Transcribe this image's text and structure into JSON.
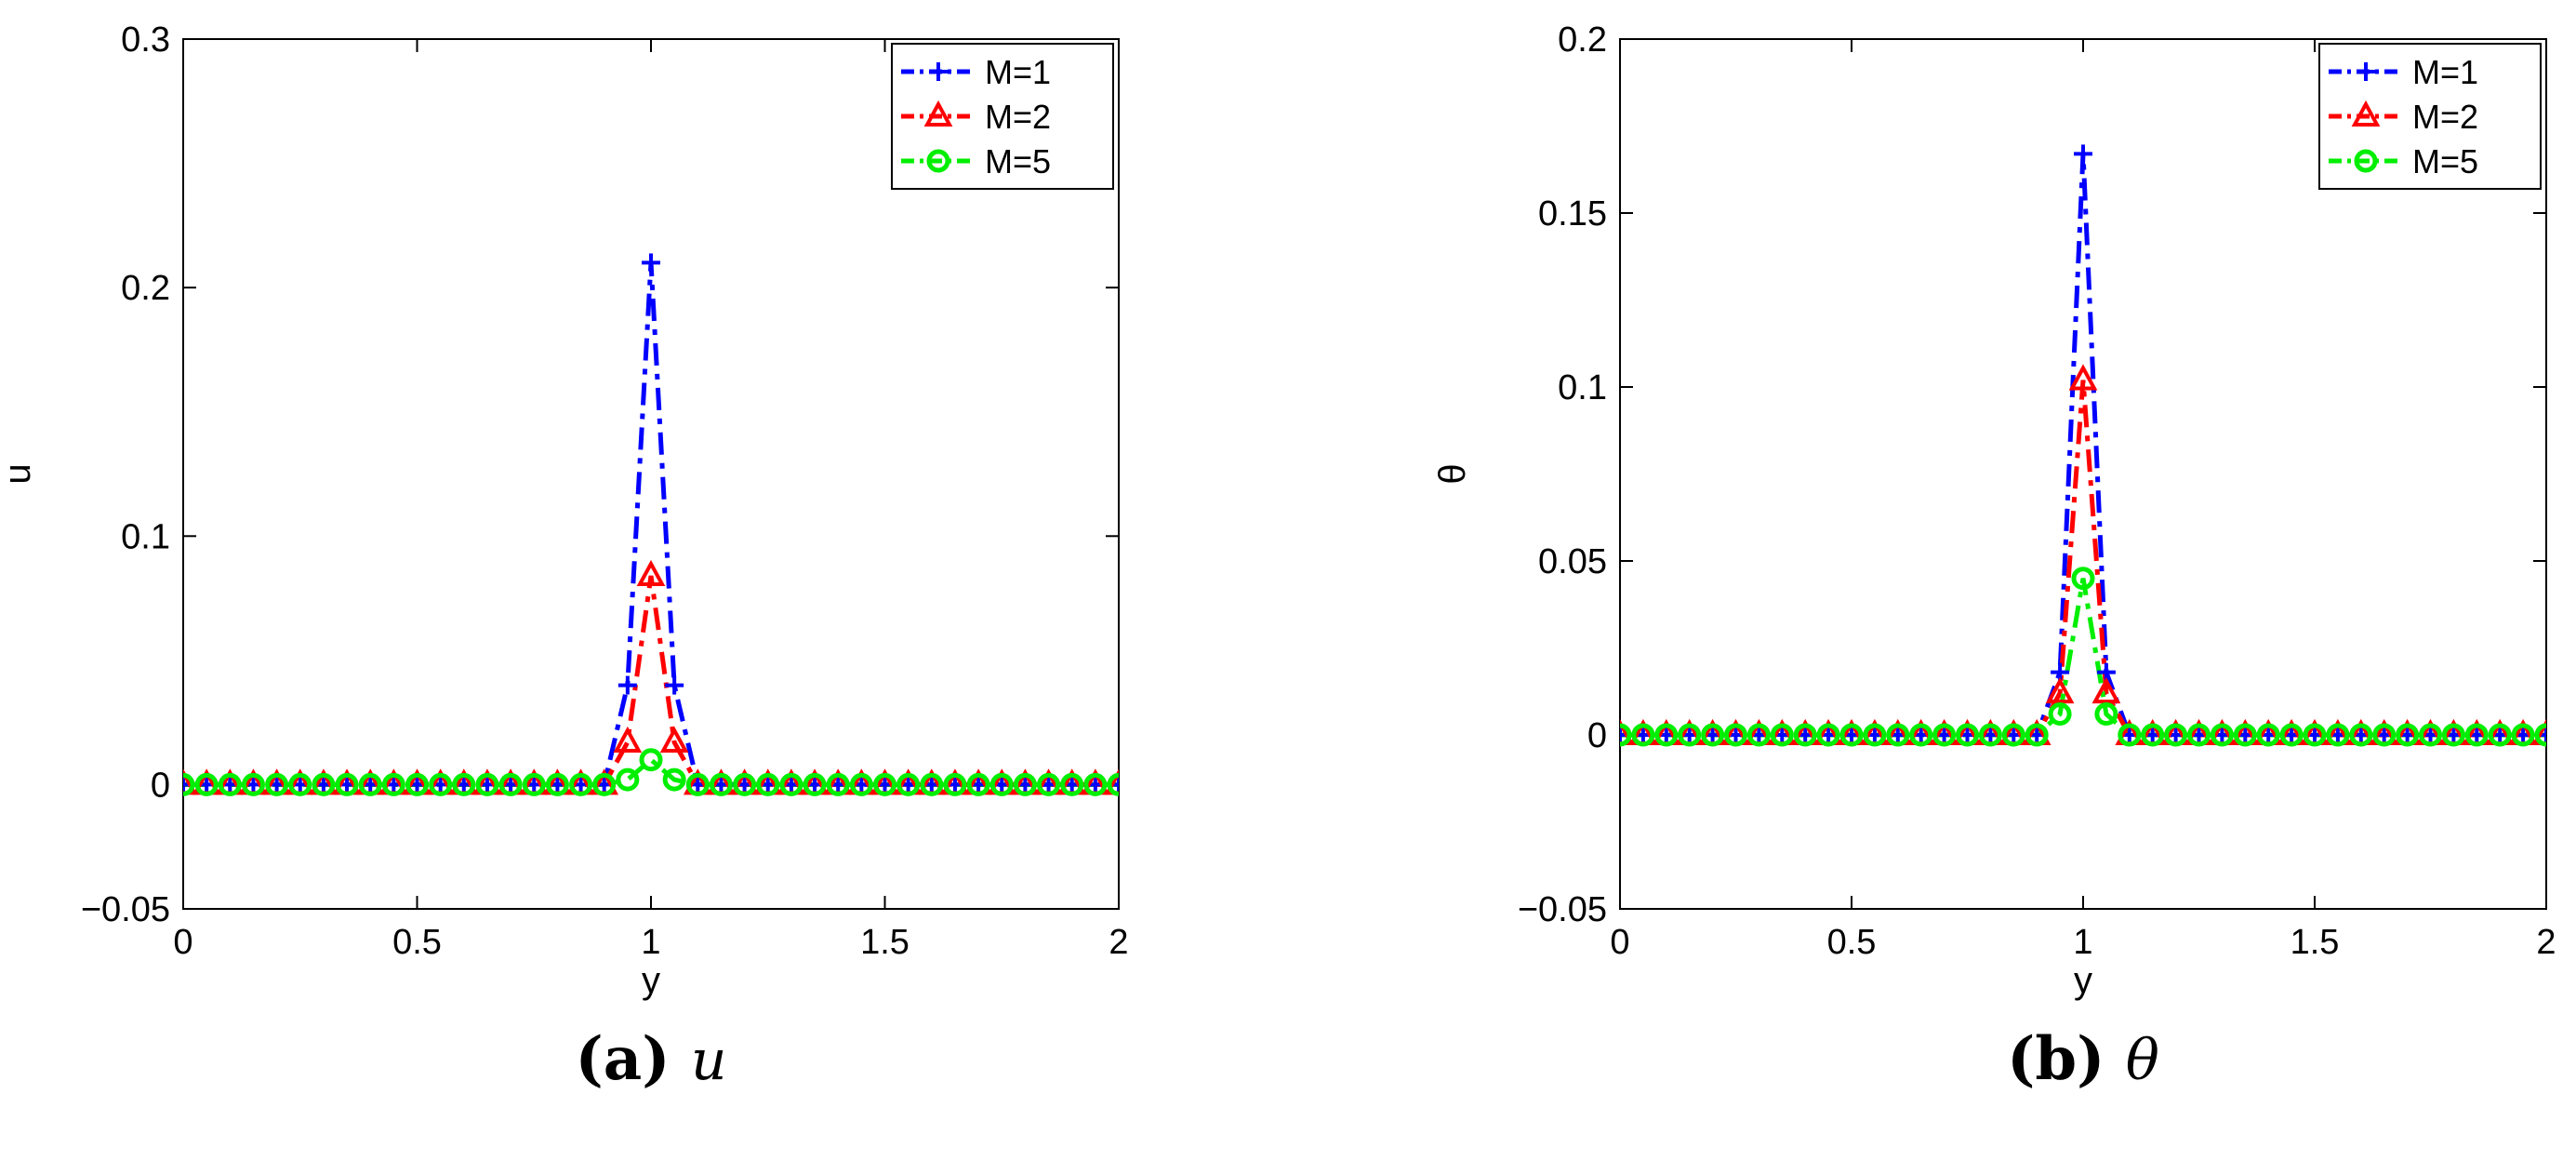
{
  "chart_data": [
    {
      "type": "line",
      "caption": {
        "label": "(a)",
        "symbol": "u"
      },
      "xlabel": "y",
      "ylabel": "u",
      "xlim": [
        0,
        2
      ],
      "ylim": [
        -0.05,
        0.3
      ],
      "xticks": [
        0,
        0.5,
        1,
        1.5,
        2
      ],
      "xtick_labels": [
        "0",
        "0.5",
        "1",
        "1.5",
        "2"
      ],
      "yticks": [
        -0.05,
        0,
        0.1,
        0.2,
        0.3
      ],
      "ytick_labels": [
        "−0.05",
        "0",
        "0.1",
        "0.2",
        "0.3"
      ],
      "grid": false,
      "legend_position": "top-right",
      "x": [
        0.0,
        0.05,
        0.1,
        0.15,
        0.2,
        0.25,
        0.3,
        0.35,
        0.4,
        0.45,
        0.5,
        0.55,
        0.6,
        0.65,
        0.7,
        0.75,
        0.8,
        0.85,
        0.9,
        0.95,
        1.0,
        1.05,
        1.1,
        1.15,
        1.2,
        1.25,
        1.3,
        1.35,
        1.4,
        1.45,
        1.5,
        1.55,
        1.6,
        1.65,
        1.7,
        1.75,
        1.8,
        1.85,
        1.9,
        1.95,
        2.0
      ],
      "series": [
        {
          "name": "M=1",
          "color": "#0000ff",
          "marker": "plus",
          "values": [
            0,
            0,
            0,
            0,
            0,
            0,
            0,
            0,
            0,
            0,
            0,
            0,
            0,
            0,
            0,
            0,
            0,
            0,
            0,
            0.04,
            0.21,
            0.04,
            0,
            0,
            0,
            0,
            0,
            0,
            0,
            0,
            0,
            0,
            0,
            0,
            0,
            0,
            0,
            0,
            0,
            0,
            0
          ]
        },
        {
          "name": "M=2",
          "color": "#ff0000",
          "marker": "triangle",
          "values": [
            0,
            0,
            0,
            0,
            0,
            0,
            0,
            0,
            0,
            0,
            0,
            0,
            0,
            0,
            0,
            0,
            0,
            0,
            0,
            0.017,
            0.084,
            0.017,
            0,
            0,
            0,
            0,
            0,
            0,
            0,
            0,
            0,
            0,
            0,
            0,
            0,
            0,
            0,
            0,
            0,
            0,
            0
          ]
        },
        {
          "name": "M=5",
          "color": "#00ee00",
          "marker": "circle",
          "values": [
            0,
            0,
            0,
            0,
            0,
            0,
            0,
            0,
            0,
            0,
            0,
            0,
            0,
            0,
            0,
            0,
            0,
            0,
            0,
            0.002,
            0.01,
            0.002,
            0,
            0,
            0,
            0,
            0,
            0,
            0,
            0,
            0,
            0,
            0,
            0,
            0,
            0,
            0,
            0,
            0,
            0,
            0
          ]
        }
      ]
    },
    {
      "type": "line",
      "caption": {
        "label": "(b)",
        "symbol": "θ"
      },
      "xlabel": "y",
      "ylabel": "θ",
      "xlim": [
        0,
        2
      ],
      "ylim": [
        -0.05,
        0.2
      ],
      "xticks": [
        0,
        0.5,
        1,
        1.5,
        2
      ],
      "xtick_labels": [
        "0",
        "0.5",
        "1",
        "1.5",
        "2"
      ],
      "yticks": [
        -0.05,
        0,
        0.05,
        0.1,
        0.15,
        0.2
      ],
      "ytick_labels": [
        "−0.05",
        "0",
        "0.05",
        "0.1",
        "0.15",
        "0.2"
      ],
      "grid": false,
      "legend_position": "top-right",
      "x": [
        0.0,
        0.05,
        0.1,
        0.15,
        0.2,
        0.25,
        0.3,
        0.35,
        0.4,
        0.45,
        0.5,
        0.55,
        0.6,
        0.65,
        0.7,
        0.75,
        0.8,
        0.85,
        0.9,
        0.95,
        1.0,
        1.05,
        1.1,
        1.15,
        1.2,
        1.25,
        1.3,
        1.35,
        1.4,
        1.45,
        1.5,
        1.55,
        1.6,
        1.65,
        1.7,
        1.75,
        1.8,
        1.85,
        1.9,
        1.95,
        2.0
      ],
      "series": [
        {
          "name": "M=1",
          "color": "#0000ff",
          "marker": "plus",
          "values": [
            0,
            0,
            0,
            0,
            0,
            0,
            0,
            0,
            0,
            0,
            0,
            0,
            0,
            0,
            0,
            0,
            0,
            0,
            0,
            0.018,
            0.167,
            0.018,
            0,
            0,
            0,
            0,
            0,
            0,
            0,
            0,
            0,
            0,
            0,
            0,
            0,
            0,
            0,
            0,
            0,
            0,
            0
          ]
        },
        {
          "name": "M=2",
          "color": "#ff0000",
          "marker": "triangle",
          "values": [
            0,
            0,
            0,
            0,
            0,
            0,
            0,
            0,
            0,
            0,
            0,
            0,
            0,
            0,
            0,
            0,
            0,
            0,
            0,
            0.012,
            0.102,
            0.012,
            0,
            0,
            0,
            0,
            0,
            0,
            0,
            0,
            0,
            0,
            0,
            0,
            0,
            0,
            0,
            0,
            0,
            0,
            0
          ]
        },
        {
          "name": "M=5",
          "color": "#00ee00",
          "marker": "circle",
          "values": [
            0,
            0,
            0,
            0,
            0,
            0,
            0,
            0,
            0,
            0,
            0,
            0,
            0,
            0,
            0,
            0,
            0,
            0,
            0,
            0.006,
            0.045,
            0.006,
            0,
            0,
            0,
            0,
            0,
            0,
            0,
            0,
            0,
            0,
            0,
            0,
            0,
            0,
            0,
            0,
            0,
            0,
            0
          ]
        }
      ]
    }
  ]
}
